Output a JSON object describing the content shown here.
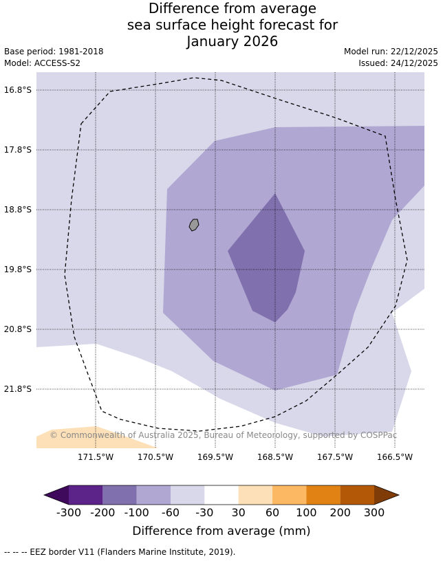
{
  "title": {
    "line1": "Difference from average",
    "line2": "sea surface height forecast for",
    "line3": "January 2026"
  },
  "meta": {
    "base_period": "Base period: 1981-2018",
    "model": "Model: ACCESS-S2",
    "model_run": "Model run: 22/12/2025",
    "issued": "Issued: 24/12/2025"
  },
  "map": {
    "lat_labels": [
      "16.8°S",
      "17.8°S",
      "18.8°S",
      "19.8°S",
      "20.8°S",
      "21.8°S"
    ],
    "lon_labels": [
      "171.5°W",
      "170.5°W",
      "169.5°W",
      "168.5°W",
      "167.5°W",
      "166.5°W"
    ],
    "copyright": "© Commonwealth of Australia 2025, Bureau of Meteorology, supported by COSPPac"
  },
  "colorbar": {
    "colors": [
      "#3f0a5c",
      "#5c2489",
      "#8070ae",
      "#b0a8d2",
      "#d8d8ea",
      "#ffffff",
      "#fde0b8",
      "#fcb862",
      "#e08214",
      "#b35806",
      "#7f3b08"
    ],
    "ticks": [
      "-300",
      "-200",
      "-100",
      "-60",
      "-30",
      "30",
      "60",
      "100",
      "200",
      "300"
    ],
    "label": "Difference from average (mm)"
  },
  "footnote": "--  --  -- EEZ border V11 (Flanders Marine Institute, 2019)."
}
